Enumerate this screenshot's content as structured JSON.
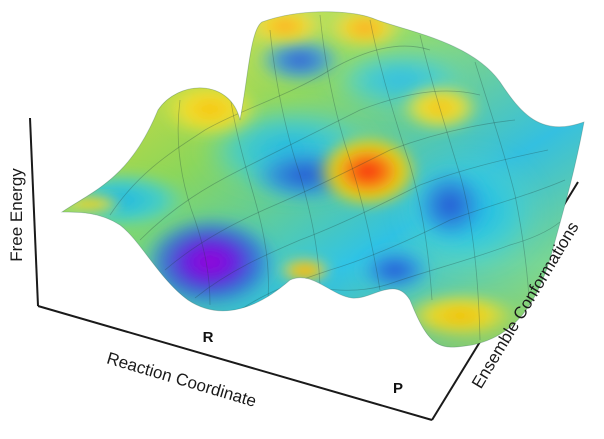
{
  "axes": {
    "z_label": "Free Energy",
    "x_label": "Reaction Coordinate",
    "y_label": "Ensemble Conformations"
  },
  "markers": {
    "reactant": "R",
    "product": "P"
  },
  "colors": {
    "high": "#f01a1a",
    "upper": "#ffd400",
    "mid_high": "#a8e050",
    "mid": "#28c8e8",
    "low": "#2a5ad8",
    "lowest": "#8a00d8",
    "axis": "#1a1a1a"
  }
}
